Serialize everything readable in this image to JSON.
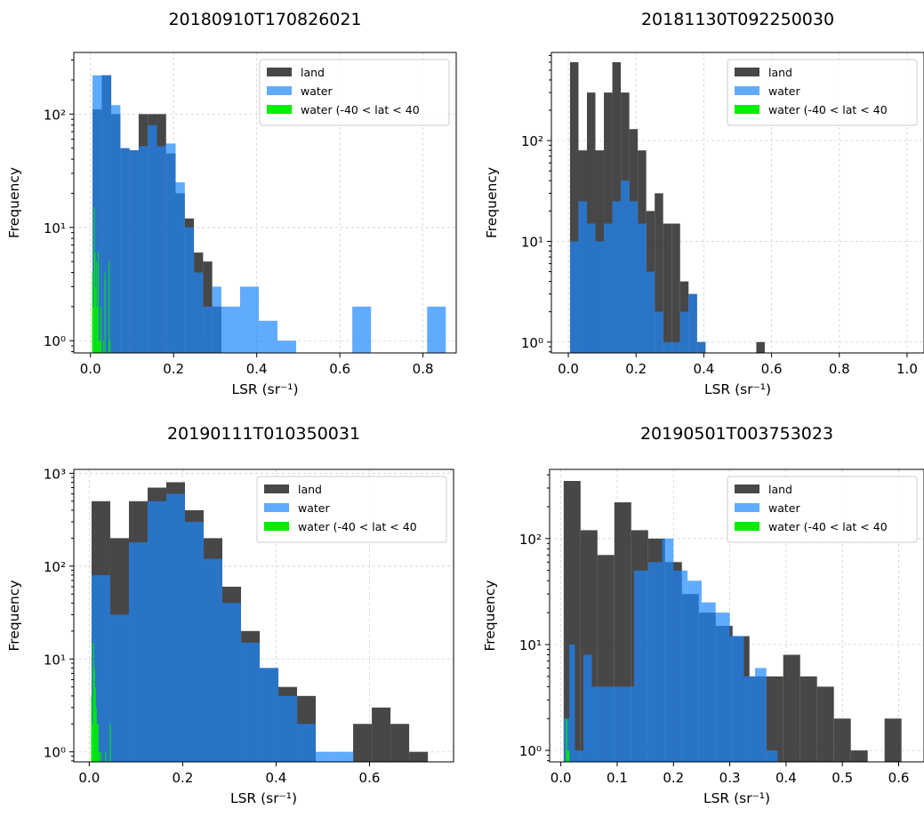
{
  "chart_data": [
    {
      "type": "bar",
      "title": "20180910T170826021",
      "xlabel": "LSR (sr⁻¹)",
      "ylabel": "Frequency",
      "yscale": "log",
      "grid": true,
      "legend_position": "top-right",
      "xlim": [
        -0.04,
        0.88
      ],
      "ylim": [
        0.78,
        350
      ],
      "xticks": [
        0.0,
        0.2,
        0.4,
        0.6,
        0.8
      ],
      "xtick_labels": [
        "0.0",
        "0.2",
        "0.4",
        "0.6",
        "0.8"
      ],
      "yticks": [
        1,
        10,
        100
      ],
      "ytick_labels": [
        "10⁰",
        "10¹",
        "10²"
      ],
      "series": [
        {
          "name": "land",
          "color": "#333333",
          "opacity": 0.9,
          "bins": [
            [
              0.005,
              0.027,
              110
            ],
            [
              0.027,
              0.05,
              220
            ],
            [
              0.05,
              0.072,
              100
            ],
            [
              0.072,
              0.094,
              50
            ],
            [
              0.094,
              0.116,
              48
            ],
            [
              0.116,
              0.138,
              100
            ],
            [
              0.138,
              0.16,
              100
            ],
            [
              0.16,
              0.182,
              100
            ],
            [
              0.182,
              0.205,
              45
            ],
            [
              0.205,
              0.227,
              20
            ],
            [
              0.227,
              0.249,
              12
            ],
            [
              0.249,
              0.271,
              6
            ],
            [
              0.271,
              0.293,
              5
            ],
            [
              0.293,
              0.315,
              2
            ]
          ]
        },
        {
          "name": "water",
          "color": "#1e88ff",
          "opacity": 0.7,
          "bins": [
            [
              0.005,
              0.027,
              220
            ],
            [
              0.027,
              0.05,
              220
            ],
            [
              0.05,
              0.072,
              120
            ],
            [
              0.072,
              0.094,
              50
            ],
            [
              0.094,
              0.116,
              48
            ],
            [
              0.116,
              0.138,
              52
            ],
            [
              0.138,
              0.16,
              80
            ],
            [
              0.16,
              0.182,
              52
            ],
            [
              0.182,
              0.205,
              55
            ],
            [
              0.205,
              0.227,
              25
            ],
            [
              0.227,
              0.249,
              10
            ],
            [
              0.249,
              0.271,
              4
            ],
            [
              0.271,
              0.293,
              2
            ],
            [
              0.293,
              0.315,
              3
            ],
            [
              0.315,
              0.36,
              2
            ],
            [
              0.36,
              0.405,
              3
            ],
            [
              0.405,
              0.45,
              1.5
            ],
            [
              0.45,
              0.495,
              1.0
            ],
            [
              0.63,
              0.675,
              2
            ],
            [
              0.81,
              0.855,
              2
            ]
          ]
        },
        {
          "name": "water (-40 < lat < 40",
          "color": "#00ee00",
          "opacity": 1.0,
          "bins": [
            [
              0.004,
              0.006,
              4
            ],
            [
              0.006,
              0.008,
              2
            ],
            [
              0.008,
              0.01,
              15
            ],
            [
              0.01,
              0.012,
              6
            ],
            [
              0.012,
              0.014,
              3
            ],
            [
              0.014,
              0.016,
              5
            ],
            [
              0.016,
              0.018,
              2
            ],
            [
              0.018,
              0.02,
              6
            ],
            [
              0.02,
              0.022,
              1
            ],
            [
              0.022,
              0.024,
              1
            ],
            [
              0.024,
              0.026,
              2
            ],
            [
              0.03,
              0.032,
              1
            ],
            [
              0.034,
              0.036,
              4
            ],
            [
              0.044,
              0.046,
              5
            ],
            [
              0.046,
              0.048,
              1
            ]
          ]
        }
      ]
    },
    {
      "type": "bar",
      "title": "20181130T092250030",
      "xlabel": "LSR (sr⁻¹)",
      "ylabel": "Frequency",
      "yscale": "log",
      "grid": true,
      "legend_position": "top-right",
      "xlim": [
        -0.05,
        1.05
      ],
      "ylim": [
        0.78,
        750
      ],
      "xticks": [
        0.0,
        0.2,
        0.4,
        0.6,
        0.8,
        1.0
      ],
      "xtick_labels": [
        "0.0",
        "0.2",
        "0.4",
        "0.6",
        "0.8",
        "1.0"
      ],
      "yticks": [
        1,
        10,
        100
      ],
      "ytick_labels": [
        "10⁰",
        "10¹",
        "10²"
      ],
      "series": [
        {
          "name": "land",
          "color": "#333333",
          "opacity": 0.9,
          "bins": [
            [
              0.005,
              0.03,
              600
            ],
            [
              0.03,
              0.055,
              80
            ],
            [
              0.055,
              0.08,
              300
            ],
            [
              0.08,
              0.105,
              80
            ],
            [
              0.105,
              0.13,
              300
            ],
            [
              0.13,
              0.155,
              600
            ],
            [
              0.155,
              0.18,
              300
            ],
            [
              0.18,
              0.205,
              130
            ],
            [
              0.205,
              0.23,
              80
            ],
            [
              0.23,
              0.255,
              20
            ],
            [
              0.255,
              0.28,
              30
            ],
            [
              0.28,
              0.305,
              15
            ],
            [
              0.305,
              0.33,
              15
            ],
            [
              0.33,
              0.355,
              4
            ],
            [
              0.355,
              0.38,
              3
            ],
            [
              0.38,
              0.405,
              1
            ],
            [
              0.555,
              0.58,
              1
            ]
          ]
        },
        {
          "name": "water",
          "color": "#1e88ff",
          "opacity": 0.7,
          "bins": [
            [
              0.005,
              0.03,
              10
            ],
            [
              0.03,
              0.055,
              25
            ],
            [
              0.055,
              0.08,
              15
            ],
            [
              0.08,
              0.105,
              10
            ],
            [
              0.105,
              0.13,
              15
            ],
            [
              0.13,
              0.155,
              25
            ],
            [
              0.155,
              0.18,
              40
            ],
            [
              0.18,
              0.205,
              25
            ],
            [
              0.205,
              0.23,
              15
            ],
            [
              0.23,
              0.255,
              5
            ],
            [
              0.255,
              0.28,
              2
            ],
            [
              0.28,
              0.305,
              1
            ],
            [
              0.305,
              0.33,
              1
            ],
            [
              0.33,
              0.355,
              2
            ],
            [
              0.355,
              0.38,
              3
            ],
            [
              0.38,
              0.405,
              1
            ]
          ]
        },
        {
          "name": "water (-40 < lat < 40",
          "color": "#00ee00",
          "opacity": 1.0,
          "bins": []
        }
      ]
    },
    {
      "type": "bar",
      "title": "20190111T010350031",
      "xlabel": "LSR (sr⁻¹)",
      "ylabel": "Frequency",
      "yscale": "log",
      "grid": true,
      "legend_position": "top-right",
      "xlim": [
        -0.033,
        0.78
      ],
      "ylim": [
        0.78,
        1100
      ],
      "xticks": [
        0.0,
        0.2,
        0.4,
        0.6
      ],
      "xtick_labels": [
        "0.0",
        "0.2",
        "0.4",
        "0.6"
      ],
      "yticks": [
        1,
        10,
        100,
        1000
      ],
      "ytick_labels": [
        "10⁰",
        "10¹",
        "10²",
        "10³"
      ],
      "series": [
        {
          "name": "land",
          "color": "#333333",
          "opacity": 0.9,
          "bins": [
            [
              0.005,
              0.045,
              500
            ],
            [
              0.045,
              0.085,
              200
            ],
            [
              0.085,
              0.125,
              500
            ],
            [
              0.125,
              0.165,
              700
            ],
            [
              0.165,
              0.205,
              800
            ],
            [
              0.205,
              0.245,
              400
            ],
            [
              0.245,
              0.285,
              200
            ],
            [
              0.285,
              0.325,
              60
            ],
            [
              0.325,
              0.365,
              20
            ],
            [
              0.365,
              0.405,
              8
            ],
            [
              0.405,
              0.445,
              5
            ],
            [
              0.445,
              0.485,
              4
            ],
            [
              0.565,
              0.605,
              2
            ],
            [
              0.605,
              0.645,
              3
            ],
            [
              0.645,
              0.685,
              2
            ],
            [
              0.685,
              0.725,
              1
            ]
          ]
        },
        {
          "name": "water",
          "color": "#1e88ff",
          "opacity": 0.7,
          "bins": [
            [
              0.005,
              0.045,
              80
            ],
            [
              0.045,
              0.085,
              30
            ],
            [
              0.085,
              0.125,
              180
            ],
            [
              0.125,
              0.165,
              500
            ],
            [
              0.165,
              0.205,
              600
            ],
            [
              0.205,
              0.245,
              300
            ],
            [
              0.245,
              0.285,
              120
            ],
            [
              0.285,
              0.325,
              40
            ],
            [
              0.325,
              0.365,
              15
            ],
            [
              0.365,
              0.405,
              8
            ],
            [
              0.405,
              0.445,
              4
            ],
            [
              0.445,
              0.485,
              2
            ],
            [
              0.485,
              0.525,
              1
            ],
            [
              0.525,
              0.565,
              1
            ]
          ]
        },
        {
          "name": "water (-40 < lat < 40",
          "color": "#00ee00",
          "opacity": 1.0,
          "bins": [
            [
              0.004,
              0.006,
              4
            ],
            [
              0.006,
              0.008,
              2
            ],
            [
              0.008,
              0.01,
              15
            ],
            [
              0.01,
              0.012,
              8
            ],
            [
              0.012,
              0.014,
              5
            ],
            [
              0.014,
              0.016,
              3
            ],
            [
              0.016,
              0.018,
              2
            ],
            [
              0.018,
              0.02,
              2
            ],
            [
              0.02,
              0.022,
              1
            ],
            [
              0.024,
              0.026,
              1
            ],
            [
              0.034,
              0.036,
              1
            ],
            [
              0.044,
              0.046,
              2
            ]
          ]
        }
      ]
    },
    {
      "type": "bar",
      "title": "20190501T003753023",
      "xlabel": "LSR (sr⁻¹)",
      "ylabel": "Frequency",
      "yscale": "log",
      "grid": true,
      "legend_position": "top-right",
      "xlim": [
        -0.02,
        0.645
      ],
      "ylim": [
        0.78,
        450
      ],
      "xticks": [
        0.0,
        0.1,
        0.2,
        0.3,
        0.4,
        0.5,
        0.6
      ],
      "xtick_labels": [
        "0.0",
        "0.1",
        "0.2",
        "0.3",
        "0.4",
        "0.5",
        "0.6"
      ],
      "yticks": [
        1,
        10,
        100
      ],
      "ytick_labels": [
        "10⁰",
        "10¹",
        "10²"
      ],
      "series": [
        {
          "name": "land",
          "color": "#333333",
          "opacity": 0.9,
          "bins": [
            [
              0.005,
              0.035,
              350
            ],
            [
              0.035,
              0.065,
              120
            ],
            [
              0.065,
              0.095,
              70
            ],
            [
              0.095,
              0.125,
              220
            ],
            [
              0.125,
              0.155,
              120
            ],
            [
              0.155,
              0.185,
              100
            ],
            [
              0.185,
              0.215,
              60
            ],
            [
              0.215,
              0.245,
              30
            ],
            [
              0.245,
              0.275,
              20
            ],
            [
              0.275,
              0.305,
              15
            ],
            [
              0.305,
              0.335,
              12
            ],
            [
              0.335,
              0.365,
              5
            ],
            [
              0.365,
              0.395,
              5
            ],
            [
              0.395,
              0.425,
              8
            ],
            [
              0.425,
              0.455,
              5
            ],
            [
              0.455,
              0.485,
              4
            ],
            [
              0.485,
              0.515,
              2
            ],
            [
              0.515,
              0.545,
              1
            ],
            [
              0.575,
              0.605,
              2
            ]
          ]
        },
        {
          "name": "water",
          "color": "#1e88ff",
          "opacity": 0.7,
          "bins": [
            [
              0.005,
              0.015,
              2
            ],
            [
              0.015,
              0.025,
              10
            ],
            [
              0.025,
              0.04,
              1
            ],
            [
              0.04,
              0.055,
              8
            ],
            [
              0.055,
              0.08,
              4
            ],
            [
              0.08,
              0.105,
              4
            ],
            [
              0.105,
              0.13,
              4
            ],
            [
              0.13,
              0.155,
              50
            ],
            [
              0.155,
              0.18,
              60
            ],
            [
              0.18,
              0.2,
              100
            ],
            [
              0.2,
              0.225,
              50
            ],
            [
              0.225,
              0.25,
              40
            ],
            [
              0.25,
              0.275,
              25
            ],
            [
              0.275,
              0.3,
              20
            ],
            [
              0.3,
              0.325,
              12
            ],
            [
              0.325,
              0.345,
              5
            ],
            [
              0.345,
              0.365,
              6
            ],
            [
              0.365,
              0.385,
              1
            ]
          ]
        },
        {
          "name": "water (-40 < lat < 40",
          "color": "#00ee00",
          "opacity": 1.0,
          "bins": [
            [
              0.009,
              0.011,
              2
            ],
            [
              0.011,
              0.013,
              1
            ],
            [
              0.013,
              0.015,
              1
            ]
          ]
        }
      ]
    }
  ]
}
